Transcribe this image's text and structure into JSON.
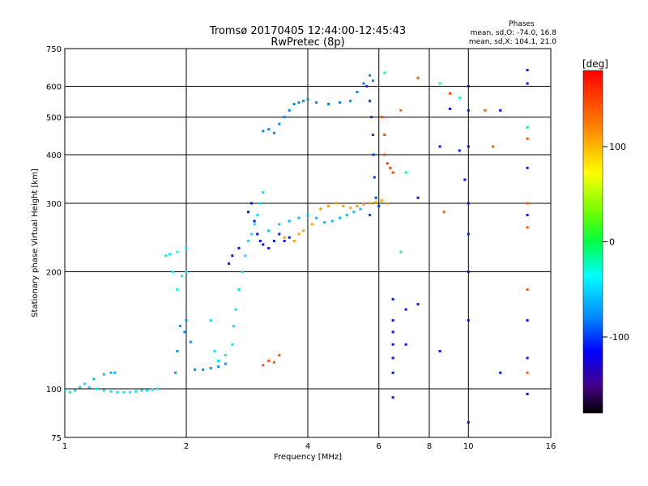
{
  "chart_data": {
    "type": "scatter",
    "title": "Tromsø 20170405 12:44:00-12:45:43",
    "subtitle": "RwPretec (8p)",
    "xlabel": "Frequency [MHz]",
    "ylabel": "Stationary phase Virtual Height [km]",
    "x_scale": "log",
    "y_scale": "log",
    "xlim": [
      1,
      16
    ],
    "ylim": [
      75,
      750
    ],
    "x_ticks": [
      1,
      2,
      4,
      6,
      8,
      10,
      16
    ],
    "y_ticks": [
      75,
      100,
      200,
      300,
      400,
      500,
      600,
      750
    ],
    "x_gridlines": [
      2,
      4,
      6,
      8,
      10
    ],
    "y_gridlines": [
      100,
      200,
      300,
      400,
      500,
      600
    ],
    "stats": {
      "header": "Phases",
      "line_o": "mean, sd,O: -74.0, 16.8",
      "line_x": "mean, sd,X: 104.1, 21.0"
    },
    "colorbar": {
      "label": "[deg]",
      "min": -180,
      "max": 180,
      "ticks": [
        100,
        0,
        -100
      ]
    },
    "groups": [
      {
        "points": [
          [
            1.0,
            99
          ],
          [
            1.03,
            98
          ],
          [
            1.06,
            99
          ],
          [
            1.09,
            101
          ],
          [
            1.12,
            103
          ],
          [
            1.15,
            101
          ],
          [
            1.2,
            100
          ],
          [
            1.25,
            99
          ],
          [
            1.3,
            98.5
          ],
          [
            1.35,
            98
          ],
          [
            1.4,
            98
          ],
          [
            1.45,
            98
          ],
          [
            1.5,
            98.5
          ],
          [
            1.55,
            99
          ],
          [
            1.6,
            99
          ],
          [
            1.65,
            99.5
          ],
          [
            1.7,
            100
          ]
        ],
        "phase": -45
      },
      {
        "points": [
          [
            1.18,
            106
          ],
          [
            1.25,
            109
          ],
          [
            1.3,
            110
          ],
          [
            1.33,
            110
          ]
        ],
        "phase": -60
      },
      {
        "points": [
          [
            1.78,
            220
          ],
          [
            1.82,
            222
          ],
          [
            1.9,
            225
          ],
          [
            2.0,
            230
          ],
          [
            1.85,
            200
          ],
          [
            1.95,
            195
          ],
          [
            2.0,
            200
          ],
          [
            1.9,
            180
          ]
        ],
        "phase": -40
      },
      {
        "points": [
          [
            1.88,
            110
          ],
          [
            1.9,
            125
          ],
          [
            1.93,
            145
          ],
          [
            1.98,
            140
          ],
          [
            2.0,
            150
          ],
          [
            2.05,
            132
          ],
          [
            2.1,
            112
          ],
          [
            2.2,
            112
          ],
          [
            2.3,
            113
          ],
          [
            2.4,
            114
          ],
          [
            2.5,
            116
          ]
        ],
        "phase": -75
      },
      {
        "points": [
          [
            2.3,
            150
          ],
          [
            2.35,
            125
          ],
          [
            2.4,
            118
          ],
          [
            2.5,
            122
          ],
          [
            2.6,
            130
          ],
          [
            2.62,
            145
          ],
          [
            2.65,
            160
          ],
          [
            2.7,
            180
          ],
          [
            2.75,
            200
          ],
          [
            2.8,
            220
          ],
          [
            2.85,
            240
          ],
          [
            2.9,
            250
          ],
          [
            2.95,
            265
          ],
          [
            3.0,
            280
          ],
          [
            3.05,
            300
          ],
          [
            3.1,
            320
          ]
        ],
        "phase": -45
      },
      {
        "points": [
          [
            2.55,
            210
          ],
          [
            2.6,
            220
          ],
          [
            2.7,
            230
          ],
          [
            2.85,
            285
          ],
          [
            2.9,
            300
          ],
          [
            2.95,
            270
          ],
          [
            3.0,
            250
          ],
          [
            3.05,
            240
          ],
          [
            3.1,
            235
          ],
          [
            3.2,
            230
          ],
          [
            3.3,
            240
          ],
          [
            3.4,
            250
          ],
          [
            3.5,
            240
          ],
          [
            3.6,
            245
          ]
        ],
        "phase": -110
      },
      {
        "points": [
          [
            3.2,
            255
          ],
          [
            3.4,
            265
          ],
          [
            3.6,
            270
          ],
          [
            3.8,
            275
          ],
          [
            4.0,
            280
          ],
          [
            4.2,
            275
          ],
          [
            4.4,
            268
          ],
          [
            4.6,
            270
          ],
          [
            4.8,
            275
          ],
          [
            5.0,
            280
          ],
          [
            5.2,
            285
          ],
          [
            5.4,
            290
          ]
        ],
        "phase": -60
      },
      {
        "points": [
          [
            3.5,
            245
          ],
          [
            3.7,
            240
          ],
          [
            3.8,
            250
          ],
          [
            3.9,
            255
          ],
          [
            4.1,
            265
          ],
          [
            4.3,
            290
          ],
          [
            4.5,
            295
          ],
          [
            4.7,
            300
          ],
          [
            4.9,
            295
          ],
          [
            5.1,
            292
          ],
          [
            5.3,
            295
          ],
          [
            5.5,
            298
          ],
          [
            5.7,
            300
          ],
          [
            5.9,
            302
          ],
          [
            6.1,
            305
          ],
          [
            6.3,
            300
          ]
        ],
        "phase": 110
      },
      {
        "points": [
          [
            3.1,
            460
          ],
          [
            3.2,
            465
          ],
          [
            3.3,
            455
          ],
          [
            3.4,
            480
          ],
          [
            3.5,
            500
          ],
          [
            3.6,
            520
          ],
          [
            3.7,
            540
          ],
          [
            3.8,
            545
          ],
          [
            3.9,
            550
          ],
          [
            4.0,
            555
          ],
          [
            4.2,
            545
          ],
          [
            4.5,
            540
          ],
          [
            4.8,
            545
          ],
          [
            5.1,
            550
          ],
          [
            5.3,
            580
          ],
          [
            5.5,
            610
          ],
          [
            5.7,
            640
          ],
          [
            5.8,
            620
          ]
        ],
        "phase": -80
      },
      {
        "points": [
          [
            5.6,
            600
          ],
          [
            5.7,
            550
          ],
          [
            5.75,
            500
          ],
          [
            5.8,
            450
          ],
          [
            5.82,
            400
          ],
          [
            5.85,
            350
          ],
          [
            5.9,
            310
          ],
          [
            6.0,
            295
          ],
          [
            5.7,
            280
          ]
        ],
        "phase": -100
      },
      {
        "points": [
          [
            6.1,
            500
          ],
          [
            6.2,
            450
          ],
          [
            6.2,
            400
          ],
          [
            6.3,
            380
          ],
          [
            6.4,
            370
          ],
          [
            6.5,
            360
          ]
        ],
        "phase": 150
      },
      {
        "points": [
          [
            3.1,
            115
          ],
          [
            3.2,
            118
          ],
          [
            3.3,
            117
          ],
          [
            3.4,
            122
          ]
        ],
        "phase": 140
      },
      {
        "points": [
          [
            6.5,
            170
          ],
          [
            6.5,
            150
          ],
          [
            6.5,
            140
          ],
          [
            6.5,
            130
          ],
          [
            6.5,
            120
          ],
          [
            6.5,
            110
          ],
          [
            6.5,
            95
          ],
          [
            7.0,
            160
          ],
          [
            7.0,
            130
          ],
          [
            7.5,
            165
          ],
          [
            7.5,
            310
          ],
          [
            8.5,
            125
          ],
          [
            8.5,
            420
          ],
          [
            9.0,
            525
          ],
          [
            9.5,
            410
          ],
          [
            9.8,
            345
          ],
          [
            10.0,
            600
          ],
          [
            10.0,
            520
          ],
          [
            10.0,
            420
          ],
          [
            10.0,
            300
          ],
          [
            10.0,
            250
          ],
          [
            10.0,
            200
          ],
          [
            10.0,
            150
          ],
          [
            10.0,
            82
          ],
          [
            12.0,
            520
          ],
          [
            12.0,
            110
          ],
          [
            14.0,
            370
          ],
          [
            14.0,
            280
          ],
          [
            14.0,
            150
          ],
          [
            14.0,
            120
          ],
          [
            14.0,
            97
          ],
          [
            14.0,
            610
          ],
          [
            14.0,
            660
          ]
        ],
        "phase": -110
      },
      {
        "points": [
          [
            6.8,
            520
          ],
          [
            7.5,
            630
          ],
          [
            8.7,
            285
          ],
          [
            9.0,
            575
          ],
          [
            11.0,
            520
          ],
          [
            11.5,
            420
          ],
          [
            14.0,
            440
          ],
          [
            14.0,
            300
          ],
          [
            14.0,
            260
          ],
          [
            14.0,
            180
          ],
          [
            14.0,
            110
          ]
        ],
        "phase": 140
      },
      {
        "points": [
          [
            6.2,
            650
          ],
          [
            7.0,
            360
          ],
          [
            8.5,
            610
          ],
          [
            9.5,
            560
          ],
          [
            14.0,
            470
          ],
          [
            6.8,
            225
          ]
        ],
        "phase": -20
      }
    ]
  }
}
